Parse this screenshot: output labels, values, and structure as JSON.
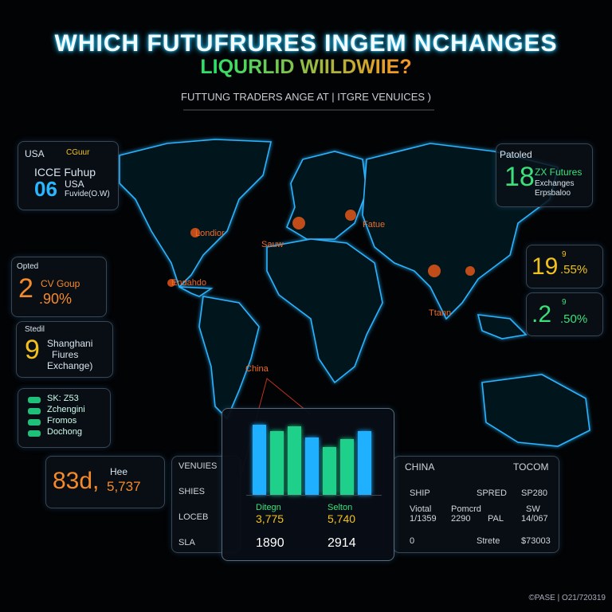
{
  "header": {
    "title": "WHICH FUTUFRURES INGEM NCHANGES",
    "subtitle": "LIQURLID WIILDWIIE?",
    "tagline": "FUTTUNG TRADERS ANGE AT | ITGRE VENUICES )"
  },
  "map_labels": [
    "Londior",
    "Sauw",
    "Fatue",
    "Endahdo",
    "Ttann",
    "China"
  ],
  "panels": {
    "usa": {
      "tag": "USA",
      "logo": "CGuur",
      "name": "ICCE Fuhup",
      "number": "06",
      "region": "USA",
      "note": "Fuvide(O.W)"
    },
    "top_right": {
      "tag": "Patoled",
      "number": "18",
      "name": "ZX Futures",
      "line2": "Exchanges",
      "line3": "Erpsbaloo"
    },
    "opted": {
      "tag": "Opted",
      "number": "2",
      "name": "CV Goup",
      "pct": ".90%"
    },
    "stedil": {
      "tag": "Stedil",
      "number": "9",
      "line1": "Shanghani",
      "line2": "Fiures",
      "line3": "Exchange)"
    },
    "legend": [
      "SK: Z53",
      "Zchengini",
      "Fromos",
      "Dochong"
    ],
    "big": {
      "number": "83d,",
      "small": "Hee",
      "value": "5,737"
    },
    "right1": {
      "number": "19",
      "sup": "9",
      "pct": ".55%"
    },
    "right2": {
      "number": ".2",
      "sup": "9",
      "pct": ".50%"
    }
  },
  "bars": {
    "values": [
      88,
      80,
      86,
      72,
      60,
      70,
      80
    ],
    "colors": [
      "#1fb0ff",
      "#1fd08a",
      "#1fd08a",
      "#1fb0ff",
      "#1fd08a",
      "#1fd08a",
      "#1fb0ff"
    ],
    "labels": [
      "Ditegn",
      "Selton"
    ],
    "sublabels": [
      "3,775",
      "5,740"
    ],
    "totals": [
      "1890",
      "2914"
    ]
  },
  "left_table": [
    "VENUIES",
    "SHIES",
    "LOCEB",
    "SLA"
  ],
  "right_table": {
    "header": [
      "CHINA",
      "TOCOM"
    ],
    "row1": [
      "SHIP",
      "SPRED",
      "SP280"
    ],
    "row2": [
      "Viotal",
      "Pomcrd",
      "PAL",
      "SW"
    ],
    "row2b": [
      "1/1359",
      "2290",
      "14/067"
    ],
    "row3": [
      "0",
      "Strete",
      "$73003"
    ]
  },
  "footer": "©PASE | O21/720319"
}
